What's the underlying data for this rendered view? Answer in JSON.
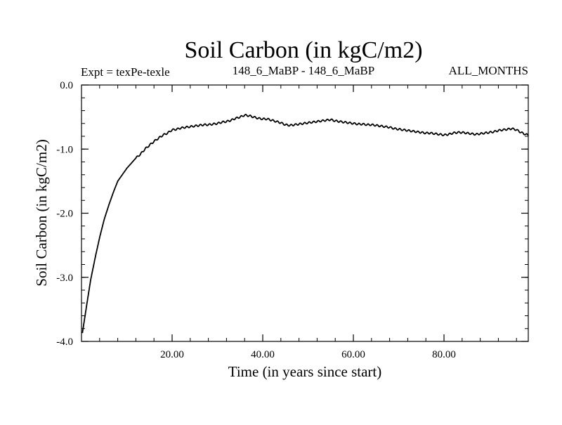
{
  "chart_data": {
    "type": "line",
    "title": "Soil Carbon (in kgC/m2)",
    "header_left": "Expt = texPe-texle",
    "header_center": "148_6_MaBP - 148_6_MaBP",
    "header_right": "ALL_MONTHS",
    "xlabel": "Time (in years since start)",
    "ylabel": "Soil Carbon (in kgC/m2)",
    "xlim": [
      0,
      98.6
    ],
    "ylim": [
      -4.0,
      0.0
    ],
    "x_ticks": [
      20,
      40,
      60,
      80
    ],
    "x_tick_labels": [
      "20.00",
      "40.00",
      "60.00",
      "80.00"
    ],
    "y_ticks": [
      0.0,
      -1.0,
      -2.0,
      -3.0,
      -4.0
    ],
    "y_tick_labels": [
      "0.0",
      "-1.0",
      "-2.0",
      "-3.0",
      "-4.0"
    ],
    "grid": false,
    "series": [
      {
        "name": "Soil Carbon",
        "color": "#000000",
        "x": [
          0.2,
          1,
          2,
          3,
          4,
          5,
          6,
          7,
          8,
          9,
          10,
          11,
          12,
          13,
          14,
          15,
          16,
          17,
          18,
          19,
          20,
          21,
          22,
          23,
          24,
          25,
          26,
          27,
          28,
          29,
          30,
          31,
          32,
          33,
          34,
          35,
          36,
          37,
          38,
          39,
          40,
          41,
          42,
          43,
          44,
          45,
          46,
          47,
          48,
          49,
          50,
          51,
          52,
          53,
          54,
          55,
          56,
          57,
          58,
          59,
          60,
          61,
          62,
          63,
          64,
          65,
          66,
          67,
          68,
          69,
          70,
          71,
          72,
          73,
          74,
          75,
          76,
          77,
          78,
          79,
          80,
          81,
          82,
          83,
          84,
          85,
          86,
          87,
          88,
          89,
          90,
          91,
          92,
          93,
          94,
          95,
          96,
          97,
          98,
          98.6
        ],
        "values": [
          -3.87,
          -3.5,
          -3.05,
          -2.7,
          -2.38,
          -2.1,
          -1.88,
          -1.68,
          -1.5,
          -1.4,
          -1.3,
          -1.22,
          -1.14,
          -1.08,
          -1.0,
          -0.94,
          -0.88,
          -0.83,
          -0.78,
          -0.75,
          -0.7,
          -0.69,
          -0.67,
          -0.66,
          -0.65,
          -0.64,
          -0.63,
          -0.62,
          -0.62,
          -0.61,
          -0.6,
          -0.58,
          -0.57,
          -0.55,
          -0.52,
          -0.5,
          -0.47,
          -0.48,
          -0.5,
          -0.52,
          -0.53,
          -0.53,
          -0.55,
          -0.57,
          -0.59,
          -0.62,
          -0.63,
          -0.62,
          -0.61,
          -0.6,
          -0.59,
          -0.58,
          -0.57,
          -0.56,
          -0.55,
          -0.54,
          -0.56,
          -0.57,
          -0.58,
          -0.59,
          -0.6,
          -0.61,
          -0.61,
          -0.62,
          -0.62,
          -0.63,
          -0.64,
          -0.65,
          -0.66,
          -0.68,
          -0.69,
          -0.7,
          -0.71,
          -0.72,
          -0.73,
          -0.74,
          -0.75,
          -0.75,
          -0.76,
          -0.77,
          -0.78,
          -0.77,
          -0.75,
          -0.74,
          -0.74,
          -0.75,
          -0.76,
          -0.77,
          -0.76,
          -0.75,
          -0.74,
          -0.73,
          -0.71,
          -0.7,
          -0.69,
          -0.68,
          -0.7,
          -0.74,
          -0.77,
          -0.78
        ]
      }
    ]
  }
}
